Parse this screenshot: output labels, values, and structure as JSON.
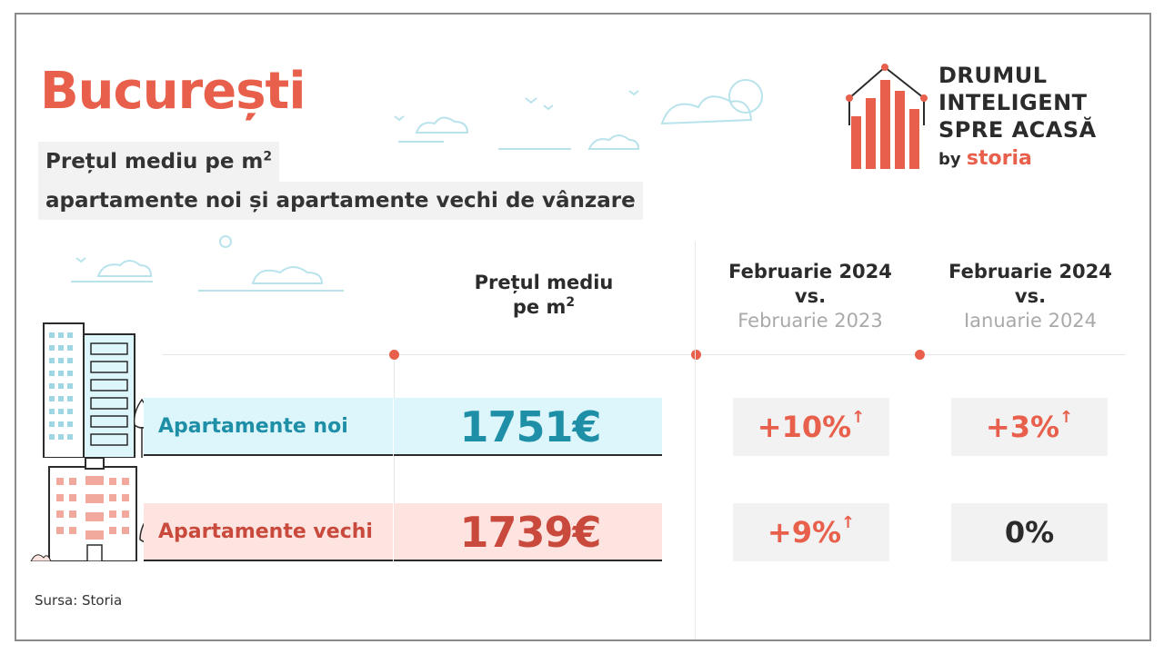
{
  "title": "București",
  "subtitle": {
    "line1": "Prețul mediu pe m",
    "line1_sup": "2",
    "line2": "apartamente noi și apartamente vechi de vânzare"
  },
  "logo": {
    "line1": "DRUMUL",
    "line2": "INTELIGENT",
    "line3": "SPRE ACASĂ",
    "by": "by",
    "brand": "storia",
    "brand_color": "#e8604c"
  },
  "table": {
    "col_price": {
      "line1": "Prețul mediu",
      "line2": "pe m",
      "sup": "2"
    },
    "col_yoy": {
      "line1": "Februarie 2024",
      "line2": "vs.",
      "line3": "Februarie 2023"
    },
    "col_mom": {
      "line1": "Februarie 2024",
      "line2": "vs.",
      "line3": "Ianuarie 2024"
    },
    "rows": [
      {
        "label": "Apartamente noi",
        "price": "1751€",
        "yoy": "+10%",
        "yoy_arrow": "↑",
        "mom": "+3%",
        "mom_arrow": "↑",
        "color": "#1e8fa6",
        "band": "#ddf6fb"
      },
      {
        "label": "Apartamente vechi",
        "price": "1739€",
        "yoy": "+9%",
        "yoy_arrow": "↑",
        "mom": "0%",
        "mom_arrow": "",
        "color": "#c94a3c",
        "band": "#fde4e0"
      }
    ]
  },
  "source": "Sursa: Storia",
  "colors": {
    "accent": "#e8604c",
    "teal": "#1e8fa6",
    "neutral_pill": "#f2f2f2"
  },
  "icons": [
    "logo-bars-icon",
    "new-building-icon",
    "old-building-icon",
    "tree-icon",
    "cloud-icon",
    "bird-icon",
    "arrow-up-icon"
  ]
}
